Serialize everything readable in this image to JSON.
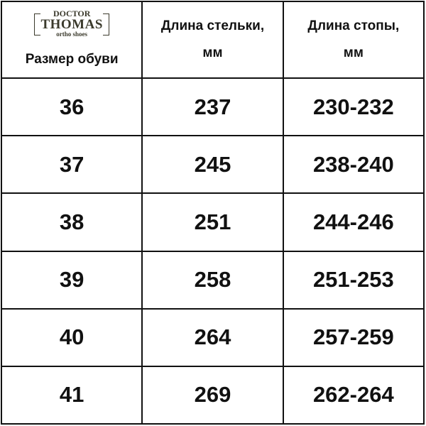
{
  "logo": {
    "line1": "DOCTOR",
    "line2": "THOMAS",
    "line3": "ortho shoes"
  },
  "headers": [
    "Размер обуви",
    "Длина стельки,",
    "мм",
    "Длина стопы,",
    "мм"
  ],
  "rows": [
    [
      "36",
      "237",
      "230-232"
    ],
    [
      "37",
      "245",
      "238-240"
    ],
    [
      "38",
      "251",
      "244-246"
    ],
    [
      "39",
      "258",
      "251-253"
    ],
    [
      "40",
      "264",
      "257-259"
    ],
    [
      "41",
      "269",
      "262-264"
    ]
  ]
}
